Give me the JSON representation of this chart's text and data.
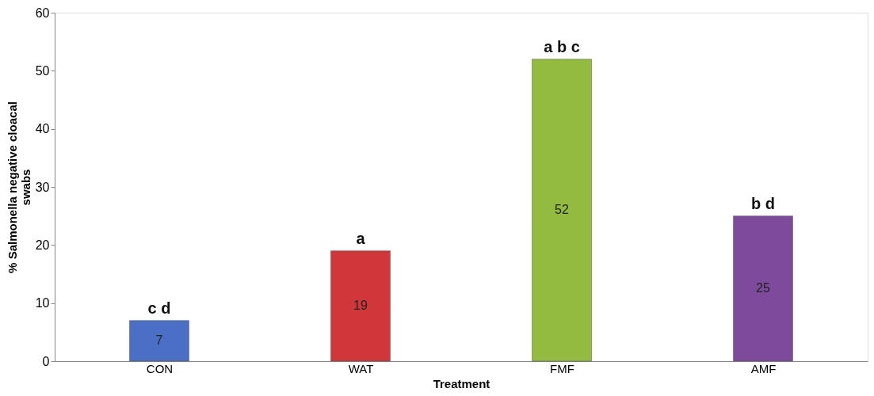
{
  "chart_data": {
    "type": "bar",
    "xlabel": "Treatment",
    "ylabel": "% Salmonella negative cloacal swabs",
    "categories": [
      "CON",
      "WAT",
      "FMF",
      "AMF"
    ],
    "values": [
      7,
      19,
      52,
      25
    ],
    "colors": [
      "#4a6fc4",
      "#d0363a",
      "#93bb3f",
      "#7d4a9c"
    ],
    "data_labels": true,
    "ylim": [
      0,
      60
    ],
    "yticks": [
      0,
      10,
      20,
      30,
      40,
      50,
      60
    ],
    "grid": false,
    "annotations": [
      {
        "text": "c d",
        "x": "CON",
        "y": 7
      },
      {
        "text": "a",
        "x": "WAT",
        "y": 19
      },
      {
        "text": "a b c",
        "x": "FMF",
        "y": 52
      },
      {
        "text": "b d",
        "x": "AMF",
        "y": 25
      }
    ]
  }
}
